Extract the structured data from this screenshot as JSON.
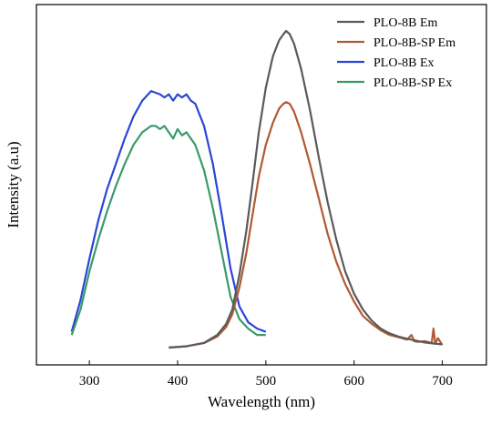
{
  "chart_data": {
    "type": "line",
    "title": "",
    "xlabel": "Wavelength (nm)",
    "ylabel": "Intensity (a.u)",
    "xlim": [
      240,
      750
    ],
    "ylim": [
      0,
      1.0
    ],
    "xticks": [
      300,
      400,
      500,
      600,
      700
    ],
    "y_tick_labels": false,
    "grid": false,
    "legend_position": "top-right",
    "series": [
      {
        "name": "PLO-8B Em",
        "color": "#5a5a5a",
        "x": [
          390,
          410,
          430,
          445,
          455,
          462,
          470,
          478,
          485,
          492,
          500,
          508,
          515,
          520,
          523,
          527,
          532,
          540,
          550,
          560,
          570,
          580,
          590,
          600,
          610,
          620,
          630,
          640,
          650,
          660,
          670,
          680,
          690,
          700
        ],
        "y": [
          0.0,
          0.004,
          0.015,
          0.04,
          0.075,
          0.12,
          0.23,
          0.37,
          0.52,
          0.68,
          0.82,
          0.92,
          0.97,
          0.99,
          1.0,
          0.99,
          0.96,
          0.88,
          0.75,
          0.6,
          0.46,
          0.34,
          0.24,
          0.17,
          0.12,
          0.085,
          0.06,
          0.045,
          0.035,
          0.028,
          0.022,
          0.016,
          0.013,
          0.01
        ]
      },
      {
        "name": "PLO-8B-SP Em",
        "color": "#b05a35",
        "x": [
          390,
          410,
          430,
          445,
          455,
          462,
          470,
          478,
          485,
          492,
          500,
          508,
          515,
          520,
          523,
          527,
          532,
          540,
          550,
          560,
          570,
          580,
          590,
          600,
          610,
          620,
          630,
          640,
          650,
          660,
          665,
          668,
          672,
          680,
          688,
          690,
          692,
          695,
          700
        ],
        "y": [
          0.0,
          0.004,
          0.014,
          0.035,
          0.065,
          0.105,
          0.19,
          0.3,
          0.42,
          0.54,
          0.64,
          0.71,
          0.755,
          0.77,
          0.775,
          0.77,
          0.745,
          0.68,
          0.58,
          0.47,
          0.36,
          0.27,
          0.2,
          0.145,
          0.1,
          0.075,
          0.055,
          0.04,
          0.033,
          0.025,
          0.04,
          0.02,
          0.018,
          0.02,
          0.015,
          0.06,
          0.012,
          0.03,
          0.008
        ]
      },
      {
        "name": "PLO-8B Ex",
        "color": "#2946d6",
        "x": [
          280,
          290,
          300,
          310,
          320,
          330,
          340,
          350,
          360,
          370,
          380,
          385,
          390,
          395,
          400,
          405,
          410,
          415,
          420,
          430,
          440,
          450,
          460,
          470,
          480,
          490,
          500
        ],
        "y": [
          0.05,
          0.15,
          0.28,
          0.4,
          0.5,
          0.58,
          0.66,
          0.73,
          0.78,
          0.81,
          0.8,
          0.79,
          0.8,
          0.78,
          0.8,
          0.79,
          0.8,
          0.78,
          0.77,
          0.7,
          0.58,
          0.42,
          0.25,
          0.13,
          0.08,
          0.06,
          0.05
        ]
      },
      {
        "name": "PLO-8B-SP Ex",
        "color": "#3a9a6a",
        "x": [
          280,
          290,
          300,
          310,
          320,
          330,
          340,
          350,
          360,
          370,
          375,
          380,
          385,
          390,
          395,
          400,
          405,
          410,
          415,
          420,
          430,
          440,
          450,
          460,
          470,
          480,
          490,
          500
        ],
        "y": [
          0.04,
          0.12,
          0.24,
          0.34,
          0.43,
          0.51,
          0.58,
          0.64,
          0.68,
          0.7,
          0.7,
          0.69,
          0.7,
          0.68,
          0.66,
          0.69,
          0.67,
          0.68,
          0.66,
          0.64,
          0.56,
          0.44,
          0.3,
          0.16,
          0.09,
          0.06,
          0.04,
          0.04
        ]
      }
    ]
  }
}
